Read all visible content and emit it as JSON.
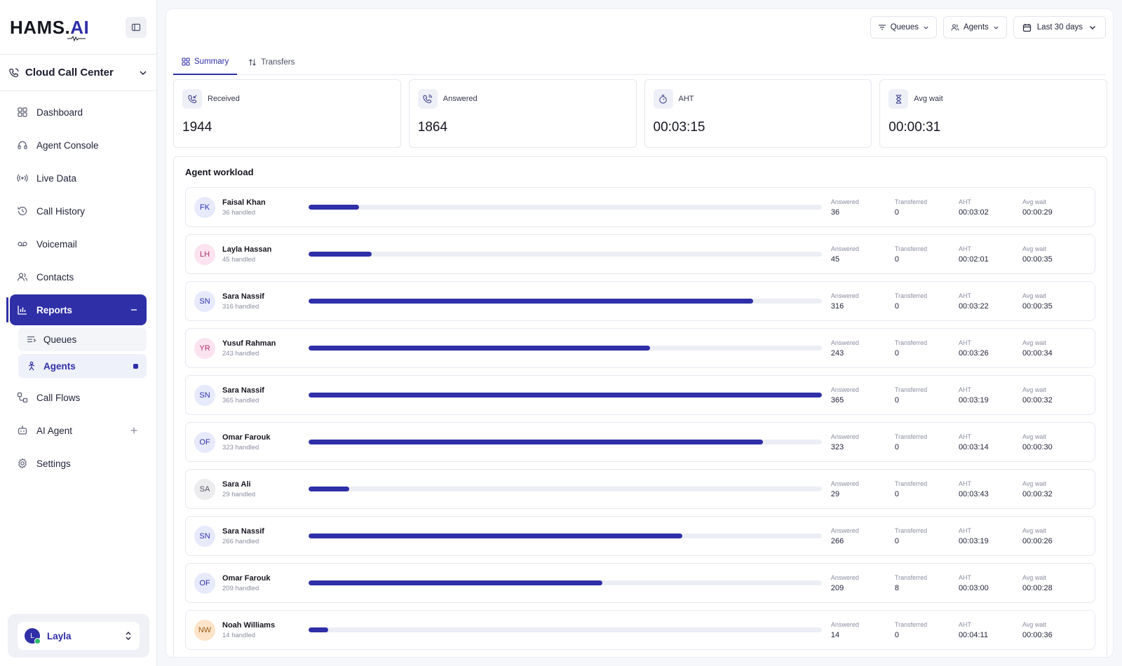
{
  "brand": {
    "name": "HAMS.",
    "suffix": "AI"
  },
  "workspace": {
    "name": "Cloud Call Center"
  },
  "nav": {
    "items": [
      {
        "label": "Dashboard",
        "icon": "grid-icon"
      },
      {
        "label": "Agent Console",
        "icon": "headset-icon"
      },
      {
        "label": "Live Data",
        "icon": "broadcast-icon"
      },
      {
        "label": "Call History",
        "icon": "history-icon"
      },
      {
        "label": "Voicemail",
        "icon": "voicemail-icon"
      },
      {
        "label": "Contacts",
        "icon": "users-icon"
      }
    ],
    "reports": {
      "label": "Reports",
      "icon": "bar-chart-icon"
    },
    "sub_items": [
      {
        "label": "Queues",
        "icon": "queue-list-icon"
      },
      {
        "label": "Agents",
        "icon": "agent-icon"
      }
    ],
    "lower_items": [
      {
        "label": "Call Flows",
        "icon": "flow-icon"
      },
      {
        "label": "AI Agent",
        "icon": "bot-icon"
      },
      {
        "label": "Settings",
        "icon": "gear-icon"
      }
    ]
  },
  "user": {
    "initial": "L",
    "name": "Layla"
  },
  "filters": {
    "queues": "Queues",
    "agents": "Agents",
    "date_range": "Last 30 days"
  },
  "tabs": [
    {
      "label": "Summary"
    },
    {
      "label": "Transfers"
    }
  ],
  "stats": [
    {
      "label": "Received",
      "value": "1944"
    },
    {
      "label": "Answered",
      "value": "1864"
    },
    {
      "label": "AHT",
      "value": "00:03:15"
    },
    {
      "label": "Avg wait",
      "value": "00:00:31"
    }
  ],
  "workload": {
    "title": "Agent workload",
    "metric_labels": {
      "answered": "Answered",
      "transferred": "Transferred",
      "aht": "AHT",
      "avg_wait": "Avg wait"
    },
    "agents": [
      {
        "initials": "FK",
        "name": "Faisal Khan",
        "handled": "36 handled",
        "answered": "36",
        "transferred": "0",
        "aht": "00:03:02",
        "avg_wait": "00:00:29",
        "load": 0.099,
        "bg": "#e6eafb",
        "fg": "#2f2fa8"
      },
      {
        "initials": "LH",
        "name": "Layla Hassan",
        "handled": "45 handled",
        "answered": "45",
        "transferred": "0",
        "aht": "00:02:01",
        "avg_wait": "00:00:35",
        "load": 0.123,
        "bg": "#fbe3f0",
        "fg": "#b0306e"
      },
      {
        "initials": "SN",
        "name": "Sara Nassif",
        "handled": "316 handled",
        "answered": "316",
        "transferred": "0",
        "aht": "00:03:22",
        "avg_wait": "00:00:35",
        "load": 0.866,
        "bg": "#e6eafb",
        "fg": "#2f2fa8"
      },
      {
        "initials": "YR",
        "name": "Yusuf Rahman",
        "handled": "243 handled",
        "answered": "243",
        "transferred": "0",
        "aht": "00:03:26",
        "avg_wait": "00:00:34",
        "load": 0.666,
        "bg": "#fbe3f0",
        "fg": "#b0306e"
      },
      {
        "initials": "SN",
        "name": "Sara Nassif",
        "handled": "365 handled",
        "answered": "365",
        "transferred": "0",
        "aht": "00:03:19",
        "avg_wait": "00:00:32",
        "load": 1.0,
        "bg": "#e6eafb",
        "fg": "#2f2fa8"
      },
      {
        "initials": "OF",
        "name": "Omar Farouk",
        "handled": "323 handled",
        "answered": "323",
        "transferred": "0",
        "aht": "00:03:14",
        "avg_wait": "00:00:30",
        "load": 0.885,
        "bg": "#e6eafb",
        "fg": "#2f2fa8"
      },
      {
        "initials": "SA",
        "name": "Sara Ali",
        "handled": "29 handled",
        "answered": "29",
        "transferred": "0",
        "aht": "00:03:43",
        "avg_wait": "00:00:32",
        "load": 0.079,
        "bg": "#ececee",
        "fg": "#555768"
      },
      {
        "initials": "SN",
        "name": "Sara Nassif",
        "handled": "266 handled",
        "answered": "266",
        "transferred": "0",
        "aht": "00:03:19",
        "avg_wait": "00:00:26",
        "load": 0.729,
        "bg": "#e6eafb",
        "fg": "#2f2fa8"
      },
      {
        "initials": "OF",
        "name": "Omar Farouk",
        "handled": "209 handled",
        "answered": "209",
        "transferred": "8",
        "aht": "00:03:00",
        "avg_wait": "00:00:28",
        "load": 0.573,
        "bg": "#e6eafb",
        "fg": "#2f2fa8"
      },
      {
        "initials": "NW",
        "name": "Noah Williams",
        "handled": "14 handled",
        "answered": "14",
        "transferred": "0",
        "aht": "00:04:11",
        "avg_wait": "00:00:36",
        "load": 0.038,
        "bg": "#fde4c8",
        "fg": "#9a5a14"
      }
    ]
  },
  "colors": {
    "accent": "#2f2fa8",
    "bar_track": "#eceef5"
  }
}
